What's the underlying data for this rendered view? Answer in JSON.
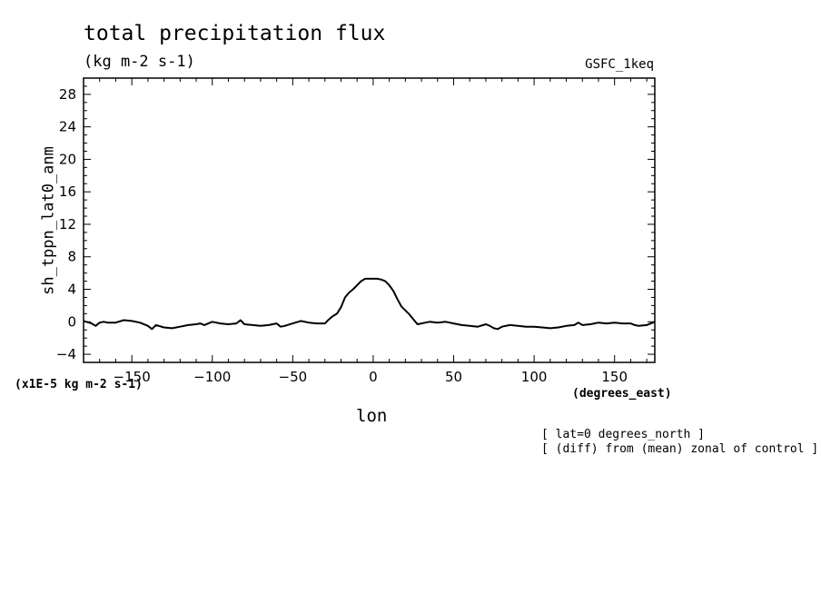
{
  "chart_data": {
    "type": "line",
    "title": "total precipitation flux",
    "units": "(kg m-2 s-1)",
    "model": "GSFC_1keq",
    "ylabel": "sh_tppn_lat0_anm",
    "xlabel": "lon",
    "x_units": "(degrees_east)",
    "y_scale_note": "(x1E-5 kg m-2 s-1)",
    "annotations": [
      "[ lat=0 degrees_north ]",
      "[ (diff) from (mean) zonal of control ]"
    ],
    "xlim": [
      -180,
      175
    ],
    "ylim": [
      -5,
      30
    ],
    "xticks": [
      -150,
      -100,
      -50,
      0,
      50,
      100,
      150
    ],
    "yticks": [
      -4,
      0,
      4,
      8,
      12,
      16,
      20,
      24,
      28
    ],
    "series": [
      {
        "name": "sh_tppn_lat0_anm",
        "x": [
          -180,
          -175,
          -172.5,
          -170,
          -167.5,
          -165,
          -160,
          -155,
          -150,
          -145,
          -140,
          -137.5,
          -135,
          -130,
          -125,
          -120,
          -115,
          -110,
          -107.5,
          -105,
          -100,
          -95,
          -90,
          -85,
          -82.5,
          -80,
          -75,
          -70,
          -65,
          -60,
          -57.5,
          -55,
          -50,
          -45,
          -40,
          -35,
          -30,
          -27.5,
          -25,
          -22.5,
          -20,
          -17.5,
          -15,
          -12.5,
          -10,
          -7.5,
          -5,
          -2.5,
          0,
          2.5,
          5,
          7.5,
          10,
          12.5,
          15,
          17.5,
          20,
          22.5,
          25,
          27.5,
          30,
          32.5,
          35,
          40,
          45,
          50,
          55,
          60,
          65,
          70,
          72.5,
          75,
          77.5,
          80,
          85,
          90,
          95,
          100,
          105,
          110,
          115,
          120,
          125,
          127.5,
          130,
          135,
          140,
          145,
          150,
          155,
          160,
          162.5,
          165,
          170,
          175
        ],
        "y": [
          0.1,
          -0.2,
          -0.5,
          -0.1,
          0.0,
          -0.1,
          -0.1,
          0.2,
          0.1,
          -0.1,
          -0.5,
          -0.9,
          -0.4,
          -0.7,
          -0.8,
          -0.6,
          -0.4,
          -0.3,
          -0.2,
          -0.4,
          0.0,
          -0.2,
          -0.3,
          -0.2,
          0.2,
          -0.3,
          -0.4,
          -0.5,
          -0.4,
          -0.2,
          -0.6,
          -0.5,
          -0.2,
          0.1,
          -0.1,
          -0.2,
          -0.2,
          0.3,
          0.7,
          1.0,
          1.8,
          3.0,
          3.6,
          4.0,
          4.5,
          5.0,
          5.3,
          5.3,
          5.3,
          5.3,
          5.2,
          5.0,
          4.5,
          3.8,
          2.8,
          1.9,
          1.4,
          0.9,
          0.3,
          -0.3,
          -0.2,
          -0.1,
          0.0,
          -0.1,
          0.0,
          -0.2,
          -0.4,
          -0.5,
          -0.6,
          -0.3,
          -0.5,
          -0.8,
          -0.9,
          -0.6,
          -0.4,
          -0.5,
          -0.6,
          -0.6,
          -0.7,
          -0.8,
          -0.7,
          -0.5,
          -0.4,
          -0.1,
          -0.4,
          -0.3,
          -0.1,
          -0.2,
          -0.1,
          -0.2,
          -0.2,
          -0.4,
          -0.5,
          -0.4,
          0.0
        ]
      }
    ]
  }
}
